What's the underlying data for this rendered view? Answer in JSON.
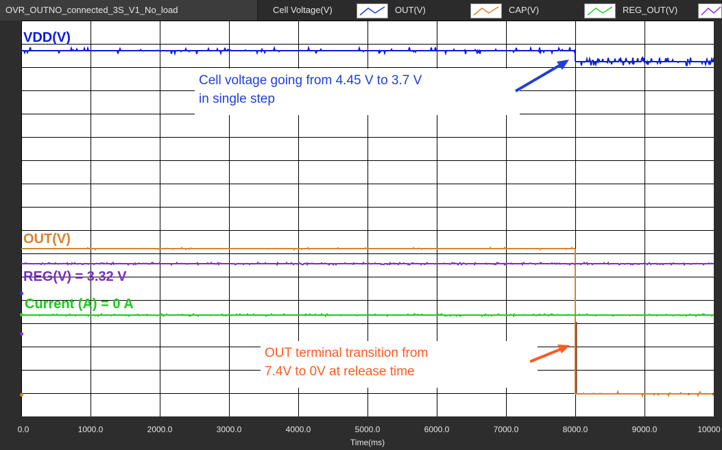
{
  "window": {
    "tab_title": "OVR_OUTNO_connected_3S_V1_No_load"
  },
  "legend": {
    "title": "Cell Voltage(V)",
    "items": [
      {
        "label": "OUT(V)",
        "color": "#1f3fd6",
        "icon": "line-swatch-icon"
      },
      {
        "label": "CAP(V)",
        "color": "#d9822b",
        "icon": "line-swatch-icon"
      },
      {
        "label": "REG_OUT(V)",
        "color": "#2ecc40",
        "icon": "line-swatch-icon"
      },
      {
        "label": "",
        "color": "#8a2be2",
        "icon": "line-swatch-icon"
      }
    ]
  },
  "plot_labels": {
    "vdd": "VDD(V)",
    "out": "OUT(V)",
    "reg": "REG(V) = 3.32 V",
    "current": "Current (A) = 0 A"
  },
  "annotations": {
    "cell_line1": "Cell voltage going from 4.45 V to 3.7 V",
    "cell_line2": "in single step",
    "out_line1": "OUT terminal transition from",
    "out_line2": "7.4V to 0V at release time"
  },
  "colors": {
    "vdd": "#0a1be0",
    "out": "#d9822b",
    "out_drop": "#8b3a10",
    "reg": "#7a2fbf",
    "current": "#1ec81e",
    "grid": "#000000",
    "annotation_blue": "#1f3fd6",
    "annotation_orange": "#ff5a1f"
  },
  "chart_data": {
    "type": "line",
    "xlabel": "Time(ms)",
    "xlim": [
      0,
      10000
    ],
    "x_ticks": [
      "0.0",
      "1000.0",
      "2000.0",
      "3000.0",
      "4000.0",
      "5000.0",
      "6000.0",
      "7000.0",
      "8000.0",
      "9000.0",
      "10000"
    ],
    "grid": true,
    "series": [
      {
        "name": "VDD(V)",
        "points": [
          [
            0,
            4.45
          ],
          [
            8000,
            4.45
          ],
          [
            8000,
            3.7
          ],
          [
            10000,
            3.7
          ]
        ]
      },
      {
        "name": "OUT(V)",
        "points": [
          [
            0,
            7.4
          ],
          [
            8000,
            7.4
          ],
          [
            8000,
            0
          ],
          [
            10000,
            0
          ]
        ]
      },
      {
        "name": "REG(V) = 3.32 V",
        "points": [
          [
            0,
            3.32
          ],
          [
            10000,
            3.32
          ]
        ]
      },
      {
        "name": "Current (A) = 0 A",
        "points": [
          [
            0,
            0
          ],
          [
            10000,
            0
          ]
        ]
      }
    ]
  }
}
